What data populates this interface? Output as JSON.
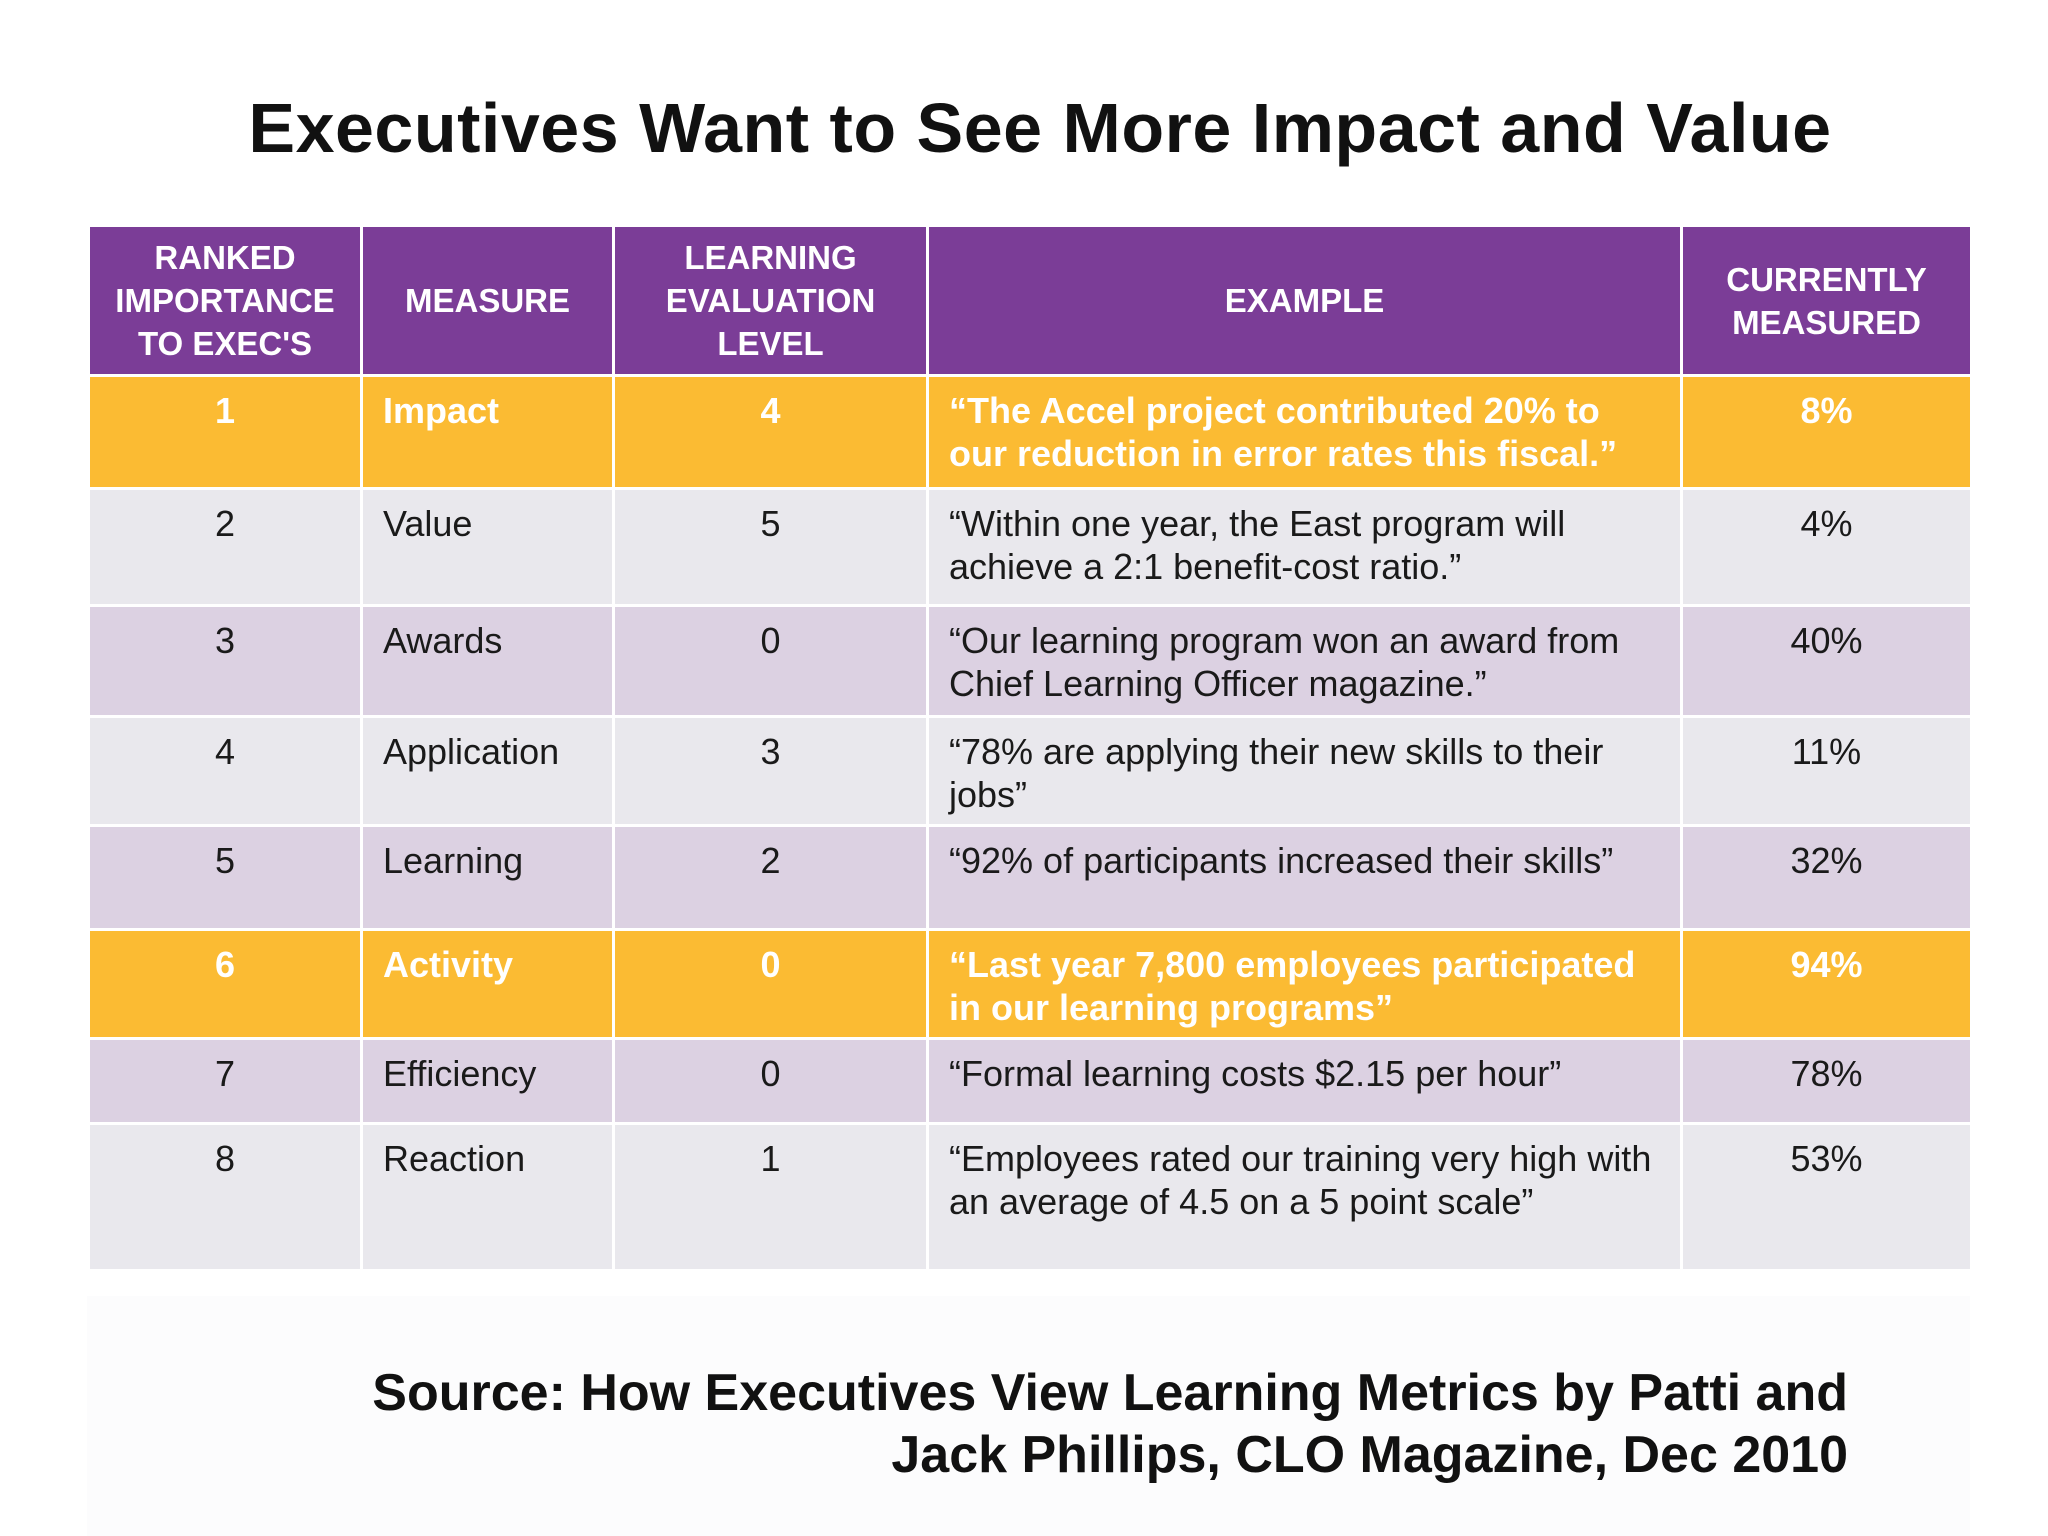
{
  "title": "Executives Want to See More Impact and Value",
  "colors": {
    "header": "#7b3d97",
    "highlight": "#fbbb33",
    "row_grey": "#e9e8ed",
    "row_lavender": "#dcd1e2"
  },
  "table": {
    "headers": [
      "RANKED IMPORTANCE TO EXEC'S",
      "MEASURE",
      "LEARNING EVALUATION LEVEL",
      "EXAMPLE",
      "CURRENTLY MEASURED"
    ],
    "rows": [
      {
        "rank": "1",
        "measure": "Impact",
        "level": "4",
        "example": "“The Accel project contributed 20% to our reduction in error rates this fiscal.”",
        "measured": "8%",
        "highlight": true
      },
      {
        "rank": "2",
        "measure": "Value",
        "level": "5",
        "example": "“Within one year, the East program will achieve a 2:1 benefit-cost ratio.”",
        "measured": "4%"
      },
      {
        "rank": "3",
        "measure": "Awards",
        "level": "0",
        "example": "“Our learning program won an award from Chief Learning Officer magazine.”",
        "measured": "40%"
      },
      {
        "rank": "4",
        "measure": "Application",
        "level": "3",
        "example": "“78% are applying their new skills to their jobs”",
        "measured": "11%"
      },
      {
        "rank": "5",
        "measure": "Learning",
        "level": "2",
        "example": "“92% of participants  increased their skills”",
        "measured": "32%"
      },
      {
        "rank": "6",
        "measure": "Activity",
        "level": "0",
        "example": "“Last year 7,800 employees participated in our  learning programs”",
        "measured": "94%",
        "highlight": true
      },
      {
        "rank": "7",
        "measure": "Efficiency",
        "level": "0",
        "example": "“Formal learning costs $2.15 per hour”",
        "measured": "78%"
      },
      {
        "rank": "8",
        "measure": "Reaction",
        "level": "1",
        "example": "“Employees rated our training very high with an average of 4.5 on a 5 point scale”",
        "measured": "53%"
      }
    ]
  },
  "source": {
    "line1": "Source: How Executives View Learning Metrics by Patti and",
    "line2": "Jack Phillips, CLO Magazine, Dec 2010"
  }
}
